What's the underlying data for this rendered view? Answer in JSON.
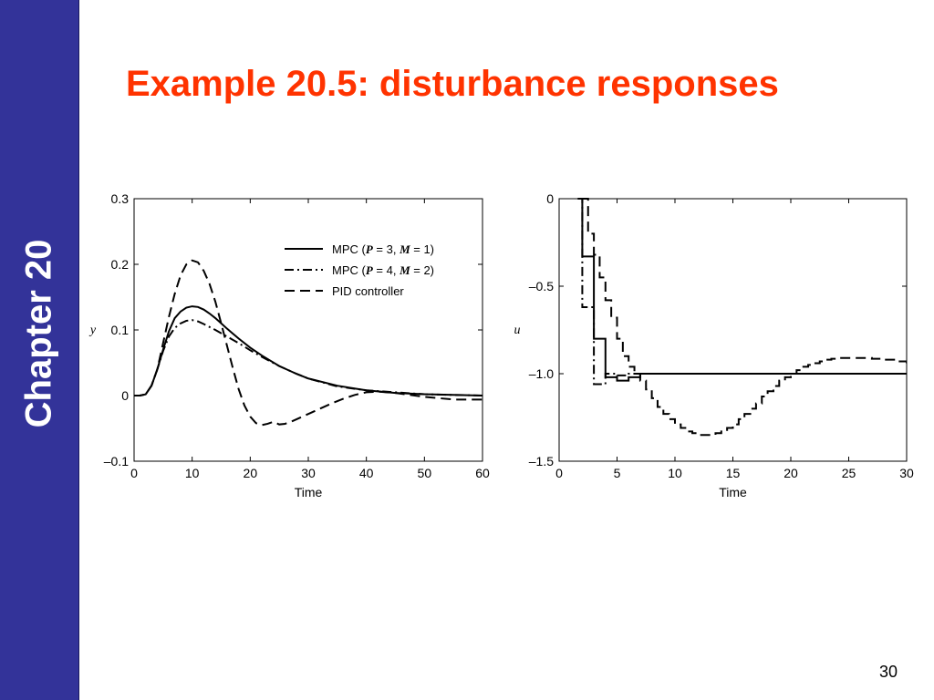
{
  "slide": {
    "chapter_label": "Chapter 20",
    "title": "Example 20.5: disturbance responses",
    "page_number": "30",
    "colors": {
      "sidebar": "#333399",
      "title": "#ff3300"
    }
  },
  "chart_data": [
    {
      "type": "line",
      "xlabel": "Time",
      "ylabel": "y",
      "xlim": [
        0,
        60
      ],
      "ylim": [
        -0.1,
        0.3
      ],
      "xticks": [
        "0",
        "10",
        "20",
        "30",
        "40",
        "50",
        "60"
      ],
      "yticks": [
        "–0.1",
        "0",
        "0.1",
        "0.2",
        "0.3"
      ],
      "legend": {
        "position": "top-right",
        "entries": [
          {
            "pre": "MPC (",
            "p_sym": "P",
            "p_val": " = 3, ",
            "m_sym": "M",
            "m_val": " = 1)",
            "style": "solid"
          },
          {
            "pre": "MPC (",
            "p_sym": "P",
            "p_val": " = 4, ",
            "m_sym": "M",
            "m_val": " = 2)",
            "style": "dashdot"
          },
          {
            "text": "PID controller",
            "style": "dashed"
          }
        ]
      },
      "series": [
        {
          "style": "solid",
          "x": [
            0,
            1,
            2,
            3,
            4,
            5,
            6,
            7,
            8,
            9,
            10,
            11,
            12,
            13,
            14,
            15,
            16,
            18,
            20,
            22,
            25,
            28,
            30,
            35,
            40,
            45,
            50,
            55,
            60
          ],
          "y": [
            0,
            0,
            0.002,
            0.015,
            0.04,
            0.07,
            0.098,
            0.118,
            0.128,
            0.134,
            0.136,
            0.135,
            0.131,
            0.125,
            0.118,
            0.11,
            0.102,
            0.087,
            0.073,
            0.061,
            0.045,
            0.033,
            0.026,
            0.015,
            0.008,
            0.004,
            0.002,
            0.001,
            0
          ]
        },
        {
          "style": "dashdot",
          "x": [
            0,
            1,
            2,
            3,
            4,
            5,
            6,
            7,
            8,
            9,
            10,
            11,
            12,
            14,
            16,
            18,
            20,
            22,
            25,
            28,
            30,
            35,
            40,
            45,
            50,
            55,
            60
          ],
          "y": [
            0,
            0,
            0.002,
            0.015,
            0.04,
            0.068,
            0.09,
            0.103,
            0.11,
            0.114,
            0.115,
            0.113,
            0.109,
            0.1,
            0.09,
            0.08,
            0.069,
            0.059,
            0.045,
            0.033,
            0.026,
            0.014,
            0.008,
            0.005,
            0.002,
            0.001,
            0
          ]
        },
        {
          "style": "dashed",
          "x": [
            0,
            1,
            2,
            3,
            4,
            5,
            6,
            7,
            8,
            9,
            10,
            11,
            12,
            13,
            14,
            15,
            16,
            17,
            18,
            19,
            20,
            21,
            22,
            23,
            24,
            25,
            26,
            27,
            28,
            30,
            32,
            34,
            36,
            38,
            40,
            42,
            45,
            50,
            55,
            60
          ],
          "y": [
            0,
            0,
            0.002,
            0.015,
            0.04,
            0.08,
            0.12,
            0.155,
            0.183,
            0.2,
            0.206,
            0.203,
            0.19,
            0.17,
            0.143,
            0.11,
            0.076,
            0.042,
            0.01,
            -0.015,
            -0.032,
            -0.042,
            -0.045,
            -0.043,
            -0.04,
            -0.044,
            -0.043,
            -0.04,
            -0.036,
            -0.028,
            -0.02,
            -0.012,
            -0.005,
            0.001,
            0.005,
            0.006,
            0.004,
            -0.002,
            -0.006,
            -0.006
          ]
        }
      ]
    },
    {
      "type": "line",
      "xlabel": "Time",
      "ylabel": "u",
      "xlim": [
        0,
        30
      ],
      "ylim": [
        -1.5,
        0
      ],
      "xticks": [
        "0",
        "5",
        "10",
        "15",
        "20",
        "25",
        "30"
      ],
      "yticks": [
        "–1.5",
        "–1.0",
        "–0.5",
        "0"
      ],
      "series": [
        {
          "style": "solid",
          "step": true,
          "x": [
            1.8,
            2,
            3,
            4,
            5,
            6,
            7,
            30
          ],
          "y": [
            0,
            -0.33,
            -0.8,
            -1.02,
            -1.04,
            -1.02,
            -1,
            -1
          ]
        },
        {
          "style": "dashdot",
          "step": true,
          "x": [
            1.6,
            2,
            3,
            4,
            5,
            6,
            7,
            30
          ],
          "y": [
            0,
            -0.62,
            -1.06,
            -1.0,
            -1.01,
            -1.0,
            -1,
            -1
          ]
        },
        {
          "style": "dashed",
          "step": true,
          "x": [
            1.8,
            2.5,
            3,
            3.5,
            4,
            4.5,
            5,
            5.5,
            6,
            6.5,
            7,
            7.5,
            8,
            8.5,
            9,
            9.5,
            10,
            10.5,
            11,
            11.5,
            12,
            12.5,
            13,
            13.5,
            14,
            14.5,
            15,
            15.5,
            16,
            16.5,
            17,
            17.5,
            18,
            18.5,
            19,
            19.5,
            20,
            20.5,
            21,
            21.5,
            22,
            22.5,
            23,
            23.5,
            24,
            24.5,
            25,
            26,
            27,
            28,
            29,
            30
          ],
          "y": [
            0,
            -0.2,
            -0.32,
            -0.45,
            -0.58,
            -0.68,
            -0.8,
            -0.9,
            -0.96,
            -1.0,
            -1.04,
            -1.09,
            -1.14,
            -1.19,
            -1.23,
            -1.26,
            -1.29,
            -1.31,
            -1.33,
            -1.34,
            -1.35,
            -1.35,
            -1.35,
            -1.34,
            -1.33,
            -1.31,
            -1.29,
            -1.26,
            -1.23,
            -1.2,
            -1.17,
            -1.13,
            -1.1,
            -1.07,
            -1.04,
            -1.02,
            -1.0,
            -0.98,
            -0.96,
            -0.95,
            -0.94,
            -0.93,
            -0.92,
            -0.915,
            -0.91,
            -0.91,
            -0.91,
            -0.91,
            -0.915,
            -0.92,
            -0.93,
            -0.94
          ]
        }
      ]
    }
  ]
}
